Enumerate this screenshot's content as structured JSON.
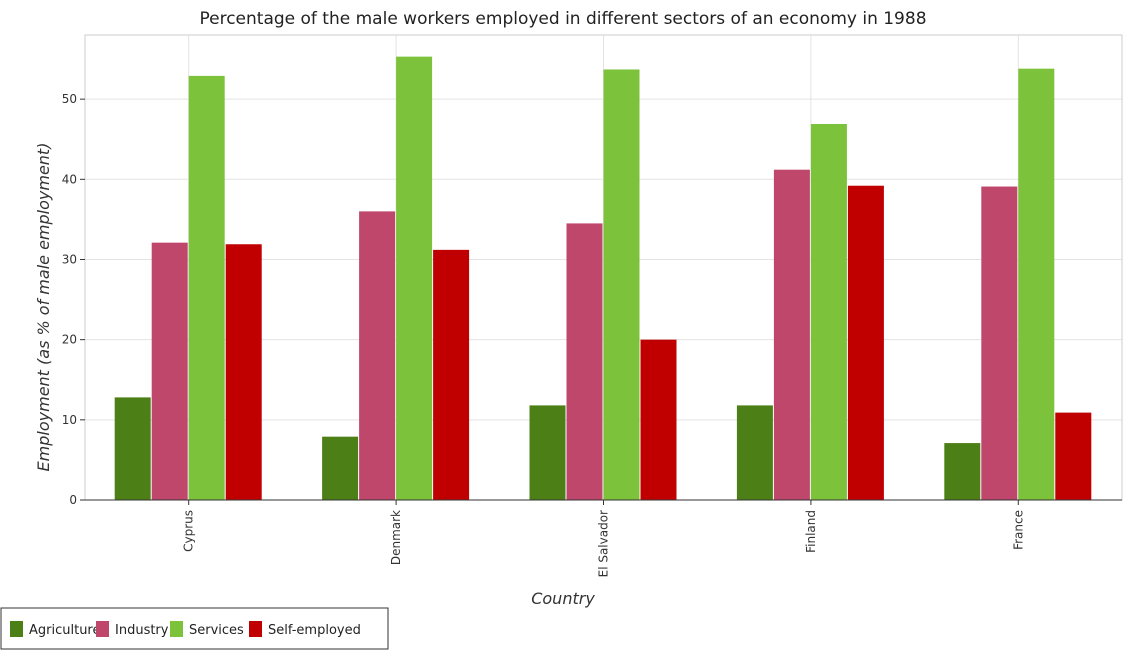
{
  "chart_data": {
    "type": "bar",
    "title": "Percentage of the male workers employed in different sectors of an economy in 1988",
    "xlabel": "Country",
    "ylabel": "Employment (as % of male employment)",
    "ylim": [
      0,
      58
    ],
    "yticks": [
      0,
      10,
      20,
      30,
      40,
      50
    ],
    "grid": true,
    "legend_position": "bottom-left",
    "categories": [
      "Cyprus",
      "Denmark",
      "El Salvador",
      "Finland",
      "France"
    ],
    "series": [
      {
        "name": "Agriculture",
        "color": "#4d7f17",
        "values": [
          12.8,
          7.9,
          11.8,
          11.8,
          7.1
        ]
      },
      {
        "name": "Industry",
        "color": "#c0476c",
        "values": [
          32.1,
          36.0,
          34.5,
          41.2,
          39.1
        ]
      },
      {
        "name": "Services",
        "color": "#7cc23a",
        "values": [
          52.9,
          55.3,
          53.7,
          46.9,
          53.8
        ]
      },
      {
        "name": "Self-employed",
        "color": "#c00000",
        "values": [
          31.9,
          31.2,
          20.0,
          39.2,
          10.9
        ]
      }
    ]
  }
}
